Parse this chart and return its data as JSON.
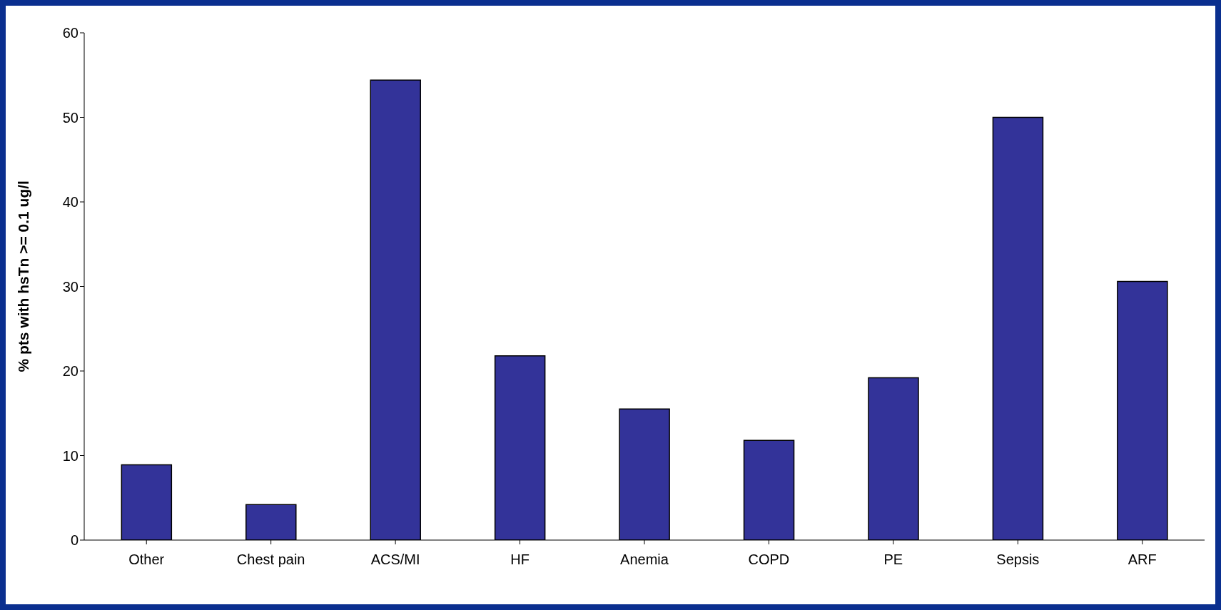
{
  "chart_data": {
    "type": "bar",
    "ylabel": "% pts with hsTn >= 0.1 ug/l",
    "categories": [
      "Other",
      "Chest pain",
      "ACS/MI",
      "HF",
      "Anemia",
      "COPD",
      "PE",
      "Sepsis",
      "ARF"
    ],
    "values": [
      8.9,
      4.2,
      54.4,
      21.8,
      15.5,
      11.8,
      19.2,
      50.0,
      30.6
    ],
    "color": "#333399",
    "ylim": [
      0,
      60
    ],
    "yticks": [
      0,
      10,
      20,
      30,
      40,
      50,
      60
    ],
    "grid": false,
    "legend": false
  }
}
